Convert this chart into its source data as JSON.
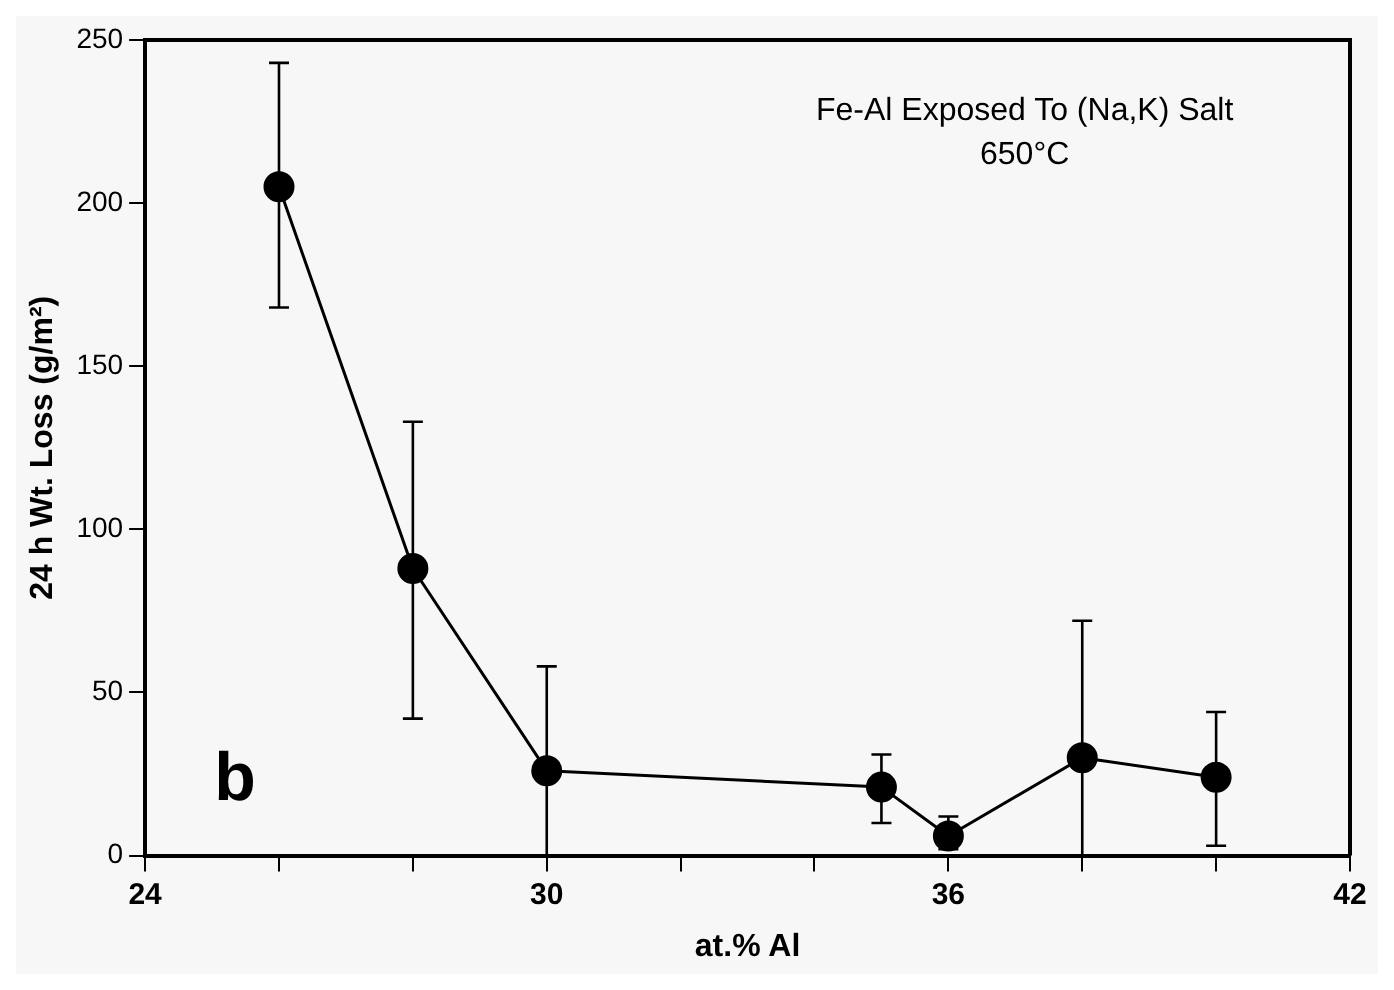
{
  "chart_data": {
    "type": "line",
    "xlabel": "at.% Al",
    "ylabel": "24 h Wt. Loss (g/m²)",
    "annotations": [
      "Fe-Al Exposed To (Na,K) Salt",
      "650°C",
      "b"
    ],
    "x": [
      26,
      28,
      30,
      35,
      36,
      38,
      40
    ],
    "series": [
      {
        "color": "#000000",
        "values": [
          205,
          88,
          26,
          21,
          6,
          30,
          24
        ],
        "errors": [
          [
            168,
            243
          ],
          [
            42,
            133
          ],
          [
            0,
            58
          ],
          [
            10,
            31
          ],
          [
            2,
            12
          ],
          [
            0,
            72
          ],
          [
            3,
            44
          ]
        ]
      }
    ],
    "xlim": [
      24,
      42
    ],
    "xticks": [
      24,
      {
        "value": 26,
        "label": null
      },
      {
        "value": 28,
        "label": null
      },
      30,
      {
        "value": 32,
        "label": null
      },
      {
        "value": 34,
        "label": null
      },
      36,
      {
        "value": 38,
        "label": null
      },
      {
        "value": 40,
        "label": null
      },
      42
    ],
    "ylim": [
      0,
      250
    ],
    "yticks": [
      0,
      50,
      100,
      150,
      200,
      250
    ],
    "grid": false,
    "legend": false,
    "marker": "circle",
    "line_style": "solid"
  }
}
